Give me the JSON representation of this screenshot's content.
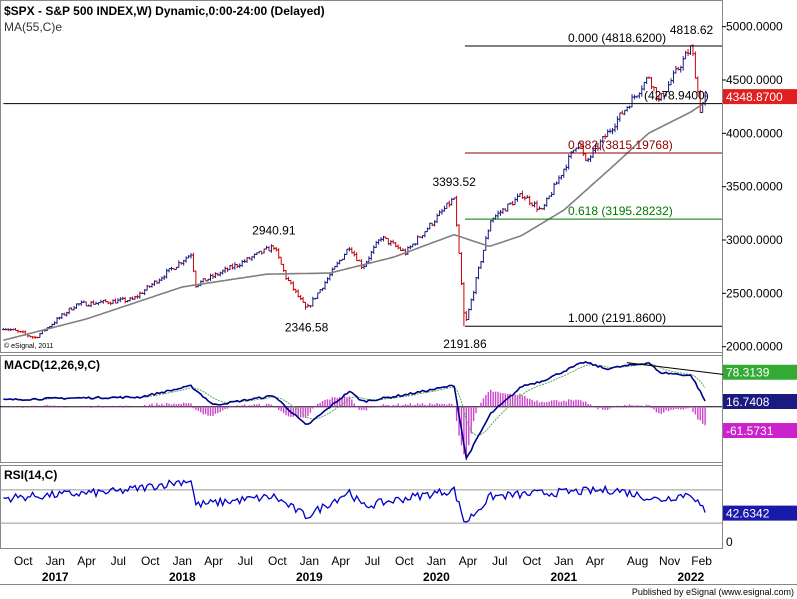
{
  "header": {
    "title": "$SPX - S&P 500 INDEX,W) Dynamic,0:00-24:00 (Delayed)",
    "ma_label": "MA(55,C)e",
    "copyright": "© eSignal, 2011"
  },
  "footer": {
    "published": "Published by eSignal (www.esignal.com)"
  },
  "colors": {
    "up_bar": "#1a1a80",
    "down_bar": "#cc0000",
    "ma": "#808080",
    "fib_0": "#000000",
    "fib_382": "#8b0000",
    "fib_618": "#007700",
    "fib_100": "#000000",
    "macd": "#00008b",
    "signal": "#55aa55",
    "hist": "#cc44cc",
    "rsi": "#0000cc",
    "price_tag": "#e02020",
    "macd_tag": "#33aa33",
    "macd_line_tag": "#1a1a80",
    "hist_tag": "#cc22cc",
    "rsi_tag": "#1a1aaa"
  },
  "chart_data": [
    {
      "panel": "price",
      "type": "candlestick",
      "y_axis_ticks": [
        "5000.0000",
        "4500.0000",
        "4000.0000",
        "3500.0000",
        "3000.0000",
        "2500.0000",
        "2000.0000"
      ],
      "ylim": [
        1950,
        5250
      ],
      "x_range": [
        "2016-08",
        "2022-03"
      ],
      "last_price": "4348.8700",
      "price_keypoints": [
        [
          "2016-08-05",
          2180
        ],
        [
          "2016-11-04",
          2085
        ],
        [
          "2017-03-01",
          2395
        ],
        [
          "2017-08-11",
          2440
        ],
        [
          "2018-01-26",
          2872
        ],
        [
          "2018-02-09",
          2581
        ],
        [
          "2018-06-15",
          2780
        ],
        [
          "2018-09-21",
          2940.91
        ],
        [
          "2018-10-26",
          2650
        ],
        [
          "2018-12-24",
          2346.58
        ],
        [
          "2019-04-26",
          2940
        ],
        [
          "2019-06-03",
          2745
        ],
        [
          "2019-07-26",
          3025
        ],
        [
          "2019-10-04",
          2880
        ],
        [
          "2020-02-21",
          3393.52
        ],
        [
          "2020-03-23",
          2191.86
        ],
        [
          "2020-06-05",
          3190
        ],
        [
          "2020-09-04",
          3426
        ],
        [
          "2020-10-30",
          3270
        ],
        [
          "2021-02-12",
          3934
        ],
        [
          "2021-03-05",
          3723
        ],
        [
          "2021-09-03",
          4535
        ],
        [
          "2021-10-01",
          4300
        ],
        [
          "2022-01-03",
          4818.62
        ],
        [
          "2022-01-28",
          4222
        ],
        [
          "2022-02-11",
          4348.87
        ]
      ],
      "ma": {
        "name": "MA(55,C)e",
        "keypoints": [
          [
            "2016-08-05",
            2060
          ],
          [
            "2017-04-01",
            2260
          ],
          [
            "2018-01-01",
            2560
          ],
          [
            "2018-09-01",
            2680
          ],
          [
            "2019-03-01",
            2690
          ],
          [
            "2019-09-01",
            2840
          ],
          [
            "2020-02-21",
            3050
          ],
          [
            "2020-06-01",
            2940
          ],
          [
            "2020-09-01",
            3040
          ],
          [
            "2021-01-01",
            3280
          ],
          [
            "2021-06-01",
            3720
          ],
          [
            "2021-09-01",
            4000
          ],
          [
            "2022-01-01",
            4200
          ],
          [
            "2022-02-11",
            4290
          ]
        ]
      },
      "annotations": [
        {
          "text": "4818.62",
          "date": "2022-01-03",
          "value": 4818.62,
          "pos": "above"
        },
        {
          "text": "3393.52",
          "date": "2020-02-21",
          "value": 3393.52,
          "pos": "above"
        },
        {
          "text": "2940.91",
          "date": "2018-09-21",
          "value": 2940.91,
          "pos": "above"
        },
        {
          "text": "2346.58",
          "date": "2018-12-24",
          "value": 2346.58,
          "pos": "below"
        },
        {
          "text": "2191.86",
          "date": "2020-03-23",
          "value": 2191.86,
          "pos": "below"
        }
      ],
      "levels": [
        {
          "text": "0.000 (4818.6200)",
          "value": 4818.62,
          "start": "2020-03-23",
          "color_key": "fib_0"
        },
        {
          "text": "(4278.9400)",
          "value": 4278.94,
          "start": "2016-08-05",
          "color_key": "fib_0"
        },
        {
          "text": "0.382 (3815.19768)",
          "value": 3815.19768,
          "start": "2020-03-23",
          "color_key": "fib_382"
        },
        {
          "text": "0.618 (3195.28232)",
          "value": 3195.28232,
          "start": "2020-03-23",
          "color_key": "fib_618"
        },
        {
          "text": "1.000 (2191.8600)",
          "value": 2191.86,
          "start": "2020-03-23",
          "color_key": "fib_100"
        }
      ]
    },
    {
      "panel": "macd",
      "type": "line",
      "label": "MACD(12,26,9,C)",
      "ylim": [
        -160,
        150
      ],
      "values_shown": [
        "78.3139",
        "16.7408",
        "-61.5731"
      ],
      "macd_keypoints": [
        [
          "2016-08-05",
          20
        ],
        [
          "2017-02-01",
          25
        ],
        [
          "2017-09-01",
          28
        ],
        [
          "2018-01-26",
          60
        ],
        [
          "2018-04-01",
          5
        ],
        [
          "2018-09-21",
          32
        ],
        [
          "2018-12-24",
          -55
        ],
        [
          "2019-04-26",
          45
        ],
        [
          "2019-06-03",
          15
        ],
        [
          "2019-10-04",
          35
        ],
        [
          "2020-02-21",
          62
        ],
        [
          "2020-03-27",
          -150
        ],
        [
          "2020-06-05",
          -20
        ],
        [
          "2020-09-04",
          60
        ],
        [
          "2020-11-01",
          75
        ],
        [
          "2021-03-01",
          130
        ],
        [
          "2021-05-01",
          110
        ],
        [
          "2021-09-03",
          128
        ],
        [
          "2021-10-01",
          100
        ],
        [
          "2022-01-03",
          90
        ],
        [
          "2022-02-11",
          16.74
        ]
      ],
      "trendline": [
        [
          "2021-07-01",
          128
        ],
        [
          "2022-02-11",
          72
        ]
      ]
    },
    {
      "panel": "rsi",
      "type": "line",
      "label": "RSI(14,C)",
      "ylim": [
        0,
        100
      ],
      "value_shown": "42.6342",
      "rsi_keypoints": [
        [
          "2016-08-05",
          60
        ],
        [
          "2017-01-01",
          64
        ],
        [
          "2017-07-01",
          68
        ],
        [
          "2018-01-26",
          82
        ],
        [
          "2018-02-09",
          52
        ],
        [
          "2018-09-21",
          62
        ],
        [
          "2018-12-24",
          38
        ],
        [
          "2019-04-26",
          68
        ],
        [
          "2019-06-03",
          50
        ],
        [
          "2019-10-04",
          60
        ],
        [
          "2020-02-21",
          70
        ],
        [
          "2020-03-23",
          30
        ],
        [
          "2020-06-05",
          62
        ],
        [
          "2020-11-01",
          66
        ],
        [
          "2021-02-12",
          68
        ],
        [
          "2021-06-01",
          70
        ],
        [
          "2021-10-01",
          58
        ],
        [
          "2022-01-03",
          66
        ],
        [
          "2022-02-11",
          42.63
        ]
      ]
    }
  ],
  "x_axis": {
    "month_labels": [
      {
        "text": "Oct",
        "date": "2016-10-01"
      },
      {
        "text": "Jan",
        "date": "2017-01-01"
      },
      {
        "text": "Apr",
        "date": "2017-04-01"
      },
      {
        "text": "Jul",
        "date": "2017-07-01"
      },
      {
        "text": "Oct",
        "date": "2017-10-01"
      },
      {
        "text": "Jan",
        "date": "2018-01-01"
      },
      {
        "text": "Apr",
        "date": "2018-04-01"
      },
      {
        "text": "Jul",
        "date": "2018-07-01"
      },
      {
        "text": "Oct",
        "date": "2018-10-01"
      },
      {
        "text": "Jan",
        "date": "2019-01-01"
      },
      {
        "text": "Apr",
        "date": "2019-04-01"
      },
      {
        "text": "Jul",
        "date": "2019-07-01"
      },
      {
        "text": "Oct",
        "date": "2019-10-01"
      },
      {
        "text": "Jan",
        "date": "2020-01-01"
      },
      {
        "text": "Apr",
        "date": "2020-04-01"
      },
      {
        "text": "Jul",
        "date": "2020-07-01"
      },
      {
        "text": "Oct",
        "date": "2020-10-01"
      },
      {
        "text": "Jan",
        "date": "2021-01-01"
      },
      {
        "text": "Apr",
        "date": "2021-04-01"
      },
      {
        "text": "Aug",
        "date": "2021-08-01"
      },
      {
        "text": "Nov",
        "date": "2021-11-01"
      },
      {
        "text": "Feb",
        "date": "2022-02-01"
      }
    ],
    "year_labels": [
      {
        "text": "2017",
        "date": "2017-01-01"
      },
      {
        "text": "2018",
        "date": "2018-01-01"
      },
      {
        "text": "2019",
        "date": "2019-01-01"
      },
      {
        "text": "2020",
        "date": "2020-01-01"
      },
      {
        "text": "2021",
        "date": "2021-01-01"
      },
      {
        "text": "2022",
        "date": "2022-01-01"
      }
    ]
  }
}
